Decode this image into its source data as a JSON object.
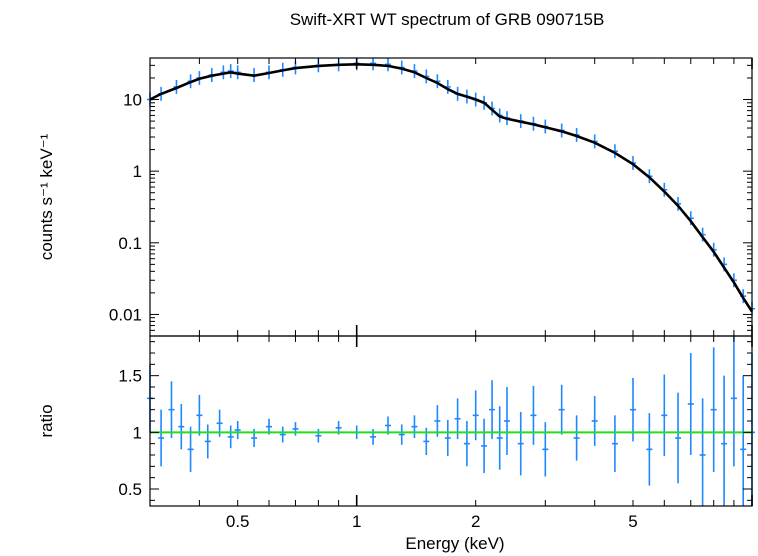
{
  "chart_data": {
    "type": "line",
    "title": "Swift-XRT WT spectrum of GRB 090715B",
    "xlabel": "Energy (keV)",
    "xscale": "log",
    "xlim": [
      0.3,
      10
    ],
    "xticks": [
      {
        "value": 0.5,
        "label": "0.5"
      },
      {
        "value": 1,
        "label": "1"
      },
      {
        "value": 2,
        "label": "2"
      },
      {
        "value": 5,
        "label": "5"
      }
    ],
    "panels": [
      {
        "id": "spectrum",
        "ylabel": "counts s⁻¹ keV⁻¹",
        "yscale": "log",
        "ylim": [
          0.005,
          38
        ],
        "yticks": [
          {
            "value": 10,
            "label": "10"
          },
          {
            "value": 1,
            "label": "1"
          },
          {
            "value": 0.1,
            "label": "0.1"
          },
          {
            "value": 0.01,
            "label": "0.01"
          }
        ],
        "series": [
          {
            "role": "data",
            "color": "#1e88ff",
            "x": [
              0.3,
              0.32,
              0.35,
              0.38,
              0.4,
              0.43,
              0.46,
              0.48,
              0.5,
              0.55,
              0.6,
              0.65,
              0.7,
              0.8,
              0.9,
              1.0,
              1.1,
              1.2,
              1.3,
              1.4,
              1.5,
              1.6,
              1.7,
              1.8,
              1.9,
              2.0,
              2.1,
              2.2,
              2.3,
              2.4,
              2.6,
              2.8,
              3.0,
              3.3,
              3.6,
              4.0,
              4.5,
              5.0,
              5.5,
              6.0,
              6.5,
              7.0,
              7.5,
              8.0,
              8.5,
              9.0,
              9.5,
              10.0
            ],
            "y": [
              10,
              12,
              15,
              18,
              20,
              22,
              24,
              25,
              24,
              22,
              24,
              26,
              28,
              30,
              31,
              32,
              32,
              31,
              28,
              25,
              21,
              18,
              15,
              12,
              11,
              10,
              9,
              7.5,
              6,
              5.5,
              5,
              4.6,
              4.2,
              3.7,
              3.2,
              2.6,
              1.9,
              1.3,
              0.85,
              0.55,
              0.35,
              0.22,
              0.13,
              0.08,
              0.05,
              0.03,
              0.018,
              0.012
            ]
          },
          {
            "role": "model",
            "color": "#000000",
            "x": [
              0.3,
              0.32,
              0.35,
              0.38,
              0.4,
              0.43,
              0.46,
              0.48,
              0.5,
              0.55,
              0.6,
              0.65,
              0.7,
              0.8,
              0.9,
              1.0,
              1.1,
              1.2,
              1.3,
              1.4,
              1.5,
              1.6,
              1.7,
              1.8,
              1.9,
              2.0,
              2.1,
              2.2,
              2.3,
              2.4,
              2.6,
              2.8,
              3.0,
              3.3,
              3.6,
              4.0,
              4.5,
              5.0,
              5.5,
              6.0,
              6.5,
              7.0,
              7.5,
              8.0,
              8.5,
              9.0,
              9.5,
              10.0
            ],
            "y": [
              10,
              12,
              14.5,
              17.5,
              19.5,
              21.5,
              23,
              24,
              23,
              21.5,
              23.5,
              25.5,
              27.5,
              29.5,
              30.5,
              31,
              30.5,
              29.5,
              27,
              24,
              20,
              17,
              14,
              12,
              11,
              10,
              9,
              7.2,
              5.8,
              5.4,
              4.9,
              4.5,
              4.1,
              3.6,
              3.1,
              2.5,
              1.8,
              1.25,
              0.82,
              0.52,
              0.33,
              0.2,
              0.12,
              0.075,
              0.045,
              0.028,
              0.017,
              0.011
            ]
          }
        ]
      },
      {
        "id": "ratio",
        "ylabel": "ratio",
        "yscale": "linear",
        "ylim": [
          0.35,
          1.85
        ],
        "yticks": [
          {
            "value": 1.5,
            "label": "1.5"
          },
          {
            "value": 1,
            "label": "1"
          },
          {
            "value": 0.5,
            "label": "0.5"
          }
        ],
        "reference_line": {
          "value": 1,
          "color": "#22dd22"
        },
        "series": [
          {
            "role": "data",
            "color": "#1e88ff",
            "x": [
              0.3,
              0.32,
              0.34,
              0.36,
              0.38,
              0.4,
              0.42,
              0.45,
              0.48,
              0.5,
              0.55,
              0.6,
              0.65,
              0.7,
              0.8,
              0.9,
              1.0,
              1.1,
              1.2,
              1.3,
              1.4,
              1.5,
              1.6,
              1.7,
              1.8,
              1.9,
              2.0,
              2.1,
              2.2,
              2.3,
              2.4,
              2.6,
              2.8,
              3.0,
              3.3,
              3.6,
              4.0,
              4.5,
              5.0,
              5.5,
              6.0,
              6.5,
              7.0,
              7.5,
              8.0,
              8.5,
              9.0,
              9.5,
              10.0
            ],
            "y": [
              1.3,
              0.95,
              1.2,
              1.05,
              0.85,
              1.15,
              0.92,
              1.08,
              0.96,
              1.02,
              0.95,
              1.05,
              0.98,
              1.03,
              0.97,
              1.04,
              1.0,
              0.96,
              1.06,
              0.98,
              1.05,
              0.92,
              1.1,
              0.95,
              1.12,
              0.9,
              1.15,
              0.88,
              1.2,
              0.95,
              1.1,
              0.9,
              1.15,
              0.85,
              1.2,
              0.95,
              1.1,
              0.9,
              1.2,
              0.85,
              1.15,
              0.95,
              1.25,
              0.8,
              1.2,
              0.9,
              1.3,
              0.85,
              1.0
            ],
            "err": [
              0.3,
              0.25,
              0.25,
              0.2,
              0.2,
              0.18,
              0.15,
              0.12,
              0.1,
              0.08,
              0.08,
              0.07,
              0.07,
              0.06,
              0.06,
              0.06,
              0.06,
              0.07,
              0.08,
              0.09,
              0.1,
              0.12,
              0.14,
              0.16,
              0.18,
              0.2,
              0.22,
              0.24,
              0.26,
              0.28,
              0.3,
              0.28,
              0.26,
              0.24,
              0.22,
              0.2,
              0.22,
              0.25,
              0.28,
              0.32,
              0.36,
              0.4,
              0.45,
              0.5,
              0.55,
              0.6,
              0.6,
              0.65,
              0.7
            ]
          }
        ]
      }
    ]
  }
}
